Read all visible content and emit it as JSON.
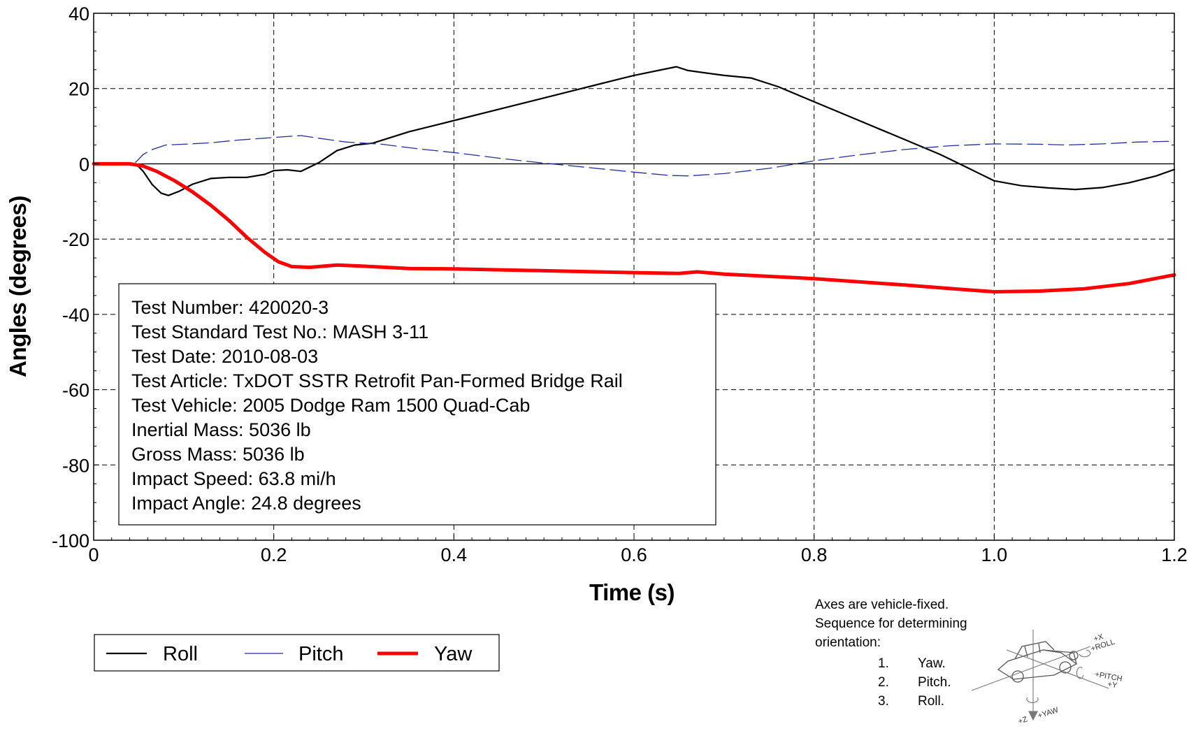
{
  "chart_data": {
    "type": "line",
    "xlabel": "Time (s)",
    "ylabel": "Angles (degrees)",
    "xlim": [
      0,
      1.2
    ],
    "ylim": [
      -100,
      40
    ],
    "xticks": [
      "0",
      "0.2",
      "0.4",
      "0.6",
      "0.8",
      "1.0",
      "1.2"
    ],
    "yticks": [
      "40",
      "20",
      "0",
      "-20",
      "-40",
      "-60",
      "-80",
      "-100"
    ],
    "grid": true,
    "legend_position": "bottom-left",
    "series": [
      {
        "name": "Roll",
        "color": "#000000",
        "style": "solid",
        "points": [
          [
            0,
            0
          ],
          [
            0.03,
            0
          ],
          [
            0.048,
            -0.3
          ],
          [
            0.055,
            -2
          ],
          [
            0.065,
            -5.5
          ],
          [
            0.075,
            -7.8
          ],
          [
            0.083,
            -8.4
          ],
          [
            0.095,
            -7.3
          ],
          [
            0.11,
            -5.4
          ],
          [
            0.13,
            -3.9
          ],
          [
            0.15,
            -3.6
          ],
          [
            0.17,
            -3.6
          ],
          [
            0.19,
            -2.8
          ],
          [
            0.2,
            -1.8
          ],
          [
            0.215,
            -1.6
          ],
          [
            0.23,
            -2
          ],
          [
            0.25,
            0.3
          ],
          [
            0.27,
            3.5
          ],
          [
            0.29,
            5
          ],
          [
            0.31,
            5.5
          ],
          [
            0.35,
            8.5
          ],
          [
            0.4,
            11.5
          ],
          [
            0.45,
            14.5
          ],
          [
            0.5,
            17.5
          ],
          [
            0.55,
            20.5
          ],
          [
            0.6,
            23.5
          ],
          [
            0.647,
            25.8
          ],
          [
            0.66,
            24.8
          ],
          [
            0.7,
            23.5
          ],
          [
            0.73,
            22.8
          ],
          [
            0.76,
            20.5
          ],
          [
            0.8,
            16.5
          ],
          [
            0.85,
            11.5
          ],
          [
            0.9,
            6.5
          ],
          [
            0.94,
            2.5
          ],
          [
            0.97,
            -1
          ],
          [
            1.0,
            -4.5
          ],
          [
            1.03,
            -5.8
          ],
          [
            1.06,
            -6.4
          ],
          [
            1.09,
            -6.8
          ],
          [
            1.12,
            -6.3
          ],
          [
            1.15,
            -5
          ],
          [
            1.18,
            -3.2
          ],
          [
            1.2,
            -1.5
          ]
        ]
      },
      {
        "name": "Pitch",
        "color": "#1f2f9c",
        "style": "dashed",
        "points": [
          [
            0,
            0
          ],
          [
            0.04,
            0
          ],
          [
            0.047,
            0.5
          ],
          [
            0.055,
            2.5
          ],
          [
            0.065,
            3.8
          ],
          [
            0.08,
            5
          ],
          [
            0.1,
            5.2
          ],
          [
            0.13,
            5.6
          ],
          [
            0.16,
            6.3
          ],
          [
            0.2,
            7
          ],
          [
            0.23,
            7.5
          ],
          [
            0.25,
            6.8
          ],
          [
            0.28,
            5.8
          ],
          [
            0.32,
            5.2
          ],
          [
            0.36,
            4
          ],
          [
            0.4,
            3
          ],
          [
            0.45,
            1.5
          ],
          [
            0.5,
            0.2
          ],
          [
            0.55,
            -1
          ],
          [
            0.6,
            -2.2
          ],
          [
            0.64,
            -3.1
          ],
          [
            0.66,
            -3.2
          ],
          [
            0.7,
            -2.6
          ],
          [
            0.75,
            -1.2
          ],
          [
            0.8,
            0.8
          ],
          [
            0.85,
            2.4
          ],
          [
            0.9,
            3.8
          ],
          [
            0.95,
            4.8
          ],
          [
            1.0,
            5.3
          ],
          [
            1.05,
            5.2
          ],
          [
            1.08,
            5
          ],
          [
            1.12,
            5.3
          ],
          [
            1.16,
            5.8
          ],
          [
            1.2,
            6
          ]
        ]
      },
      {
        "name": "Yaw",
        "color": "#ff0000",
        "style": "solid",
        "points": [
          [
            0,
            0
          ],
          [
            0.04,
            0
          ],
          [
            0.055,
            -0.6
          ],
          [
            0.07,
            -2
          ],
          [
            0.09,
            -4.5
          ],
          [
            0.11,
            -7.5
          ],
          [
            0.13,
            -11
          ],
          [
            0.15,
            -15
          ],
          [
            0.17,
            -19.5
          ],
          [
            0.19,
            -23.5
          ],
          [
            0.205,
            -26
          ],
          [
            0.22,
            -27.3
          ],
          [
            0.24,
            -27.5
          ],
          [
            0.27,
            -26.9
          ],
          [
            0.3,
            -27.2
          ],
          [
            0.35,
            -27.8
          ],
          [
            0.4,
            -27.9
          ],
          [
            0.5,
            -28.4
          ],
          [
            0.6,
            -28.9
          ],
          [
            0.65,
            -29.1
          ],
          [
            0.67,
            -28.7
          ],
          [
            0.7,
            -29.3
          ],
          [
            0.8,
            -30.5
          ],
          [
            0.9,
            -32.2
          ],
          [
            0.96,
            -33.3
          ],
          [
            1.0,
            -34
          ],
          [
            1.05,
            -33.8
          ],
          [
            1.1,
            -33.2
          ],
          [
            1.15,
            -31.8
          ],
          [
            1.2,
            -29.5
          ]
        ]
      }
    ],
    "annotation_lines": [
      "Test Number: 420020-3",
      "Test Standard Test No.: MASH 3-11",
      "Test Date: 2010-08-03",
      "Test Article: TxDOT SSTR Retrofit Pan-Formed Bridge Rail",
      "Test Vehicle: 2005 Dodge Ram 1500 Quad-Cab",
      "Inertial Mass: 5036 lb",
      "Gross Mass: 5036 lb",
      "Impact Speed: 63.8 mi/h",
      "Impact Angle: 24.8 degrees"
    ]
  },
  "orientation_note": {
    "lines": [
      "Axes are vehicle-fixed.",
      "Sequence for determining",
      "orientation:"
    ],
    "steps": [
      {
        "num": "1.",
        "text": "Yaw."
      },
      {
        "num": "2.",
        "text": "Pitch."
      },
      {
        "num": "3.",
        "text": "Roll."
      }
    ],
    "diagram_labels": {
      "roll_top": "+X",
      "roll_bottom": "+ROLL",
      "pitch_top": "+PITCH",
      "pitch_bottom": "+Y",
      "yaw_left": "+Z",
      "yaw_right": "+YAW"
    }
  }
}
